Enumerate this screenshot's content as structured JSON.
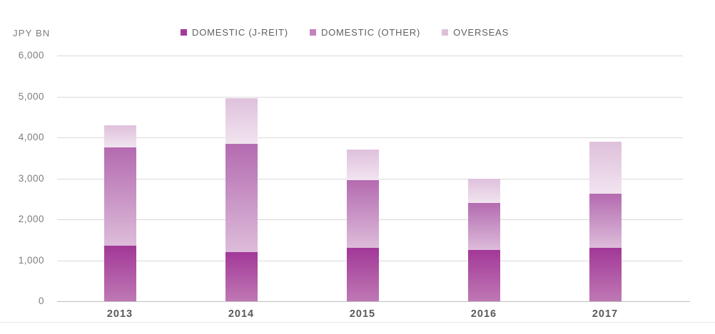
{
  "chart_data": {
    "type": "bar",
    "stacked": true,
    "title": "",
    "xlabel": "",
    "ylabel": "JPY BN",
    "categories": [
      "2013",
      "2014",
      "2015",
      "2016",
      "2017"
    ],
    "series": [
      {
        "name": "DOMESTIC (J-REIT)",
        "values": [
          1350,
          1200,
          1300,
          1250,
          1300
        ],
        "swatch": "#a33a99",
        "gradient_top": "#a23898",
        "gradient_bottom": "#bf78b4"
      },
      {
        "name": "DOMESTIC (OTHER)",
        "values": [
          2400,
          2650,
          1650,
          1150,
          1330
        ],
        "swatch": "#c482be",
        "gradient_top": "#b46bb0",
        "gradient_bottom": "#ddbcda"
      },
      {
        "name": "OVERSEAS",
        "values": [
          550,
          1100,
          750,
          600,
          1270
        ],
        "swatch": "#dcc1d9",
        "gradient_top": "#dfc0dc",
        "gradient_bottom": "#f1e4ef"
      }
    ],
    "ylim": [
      0,
      6000
    ],
    "ytick_step": 1000,
    "yticks": [
      "0",
      "1,000",
      "2,000",
      "3,000",
      "4,000",
      "5,000",
      "6,000"
    ],
    "grid": true,
    "legend_position": "top-center"
  },
  "colors": {
    "gridline": "#d9d9d9",
    "axis_line": "#bdbdbd",
    "tick_text": "#7d7d7d",
    "legend_text": "#606060",
    "year_text": "#595959",
    "background": "#ffffff"
  }
}
